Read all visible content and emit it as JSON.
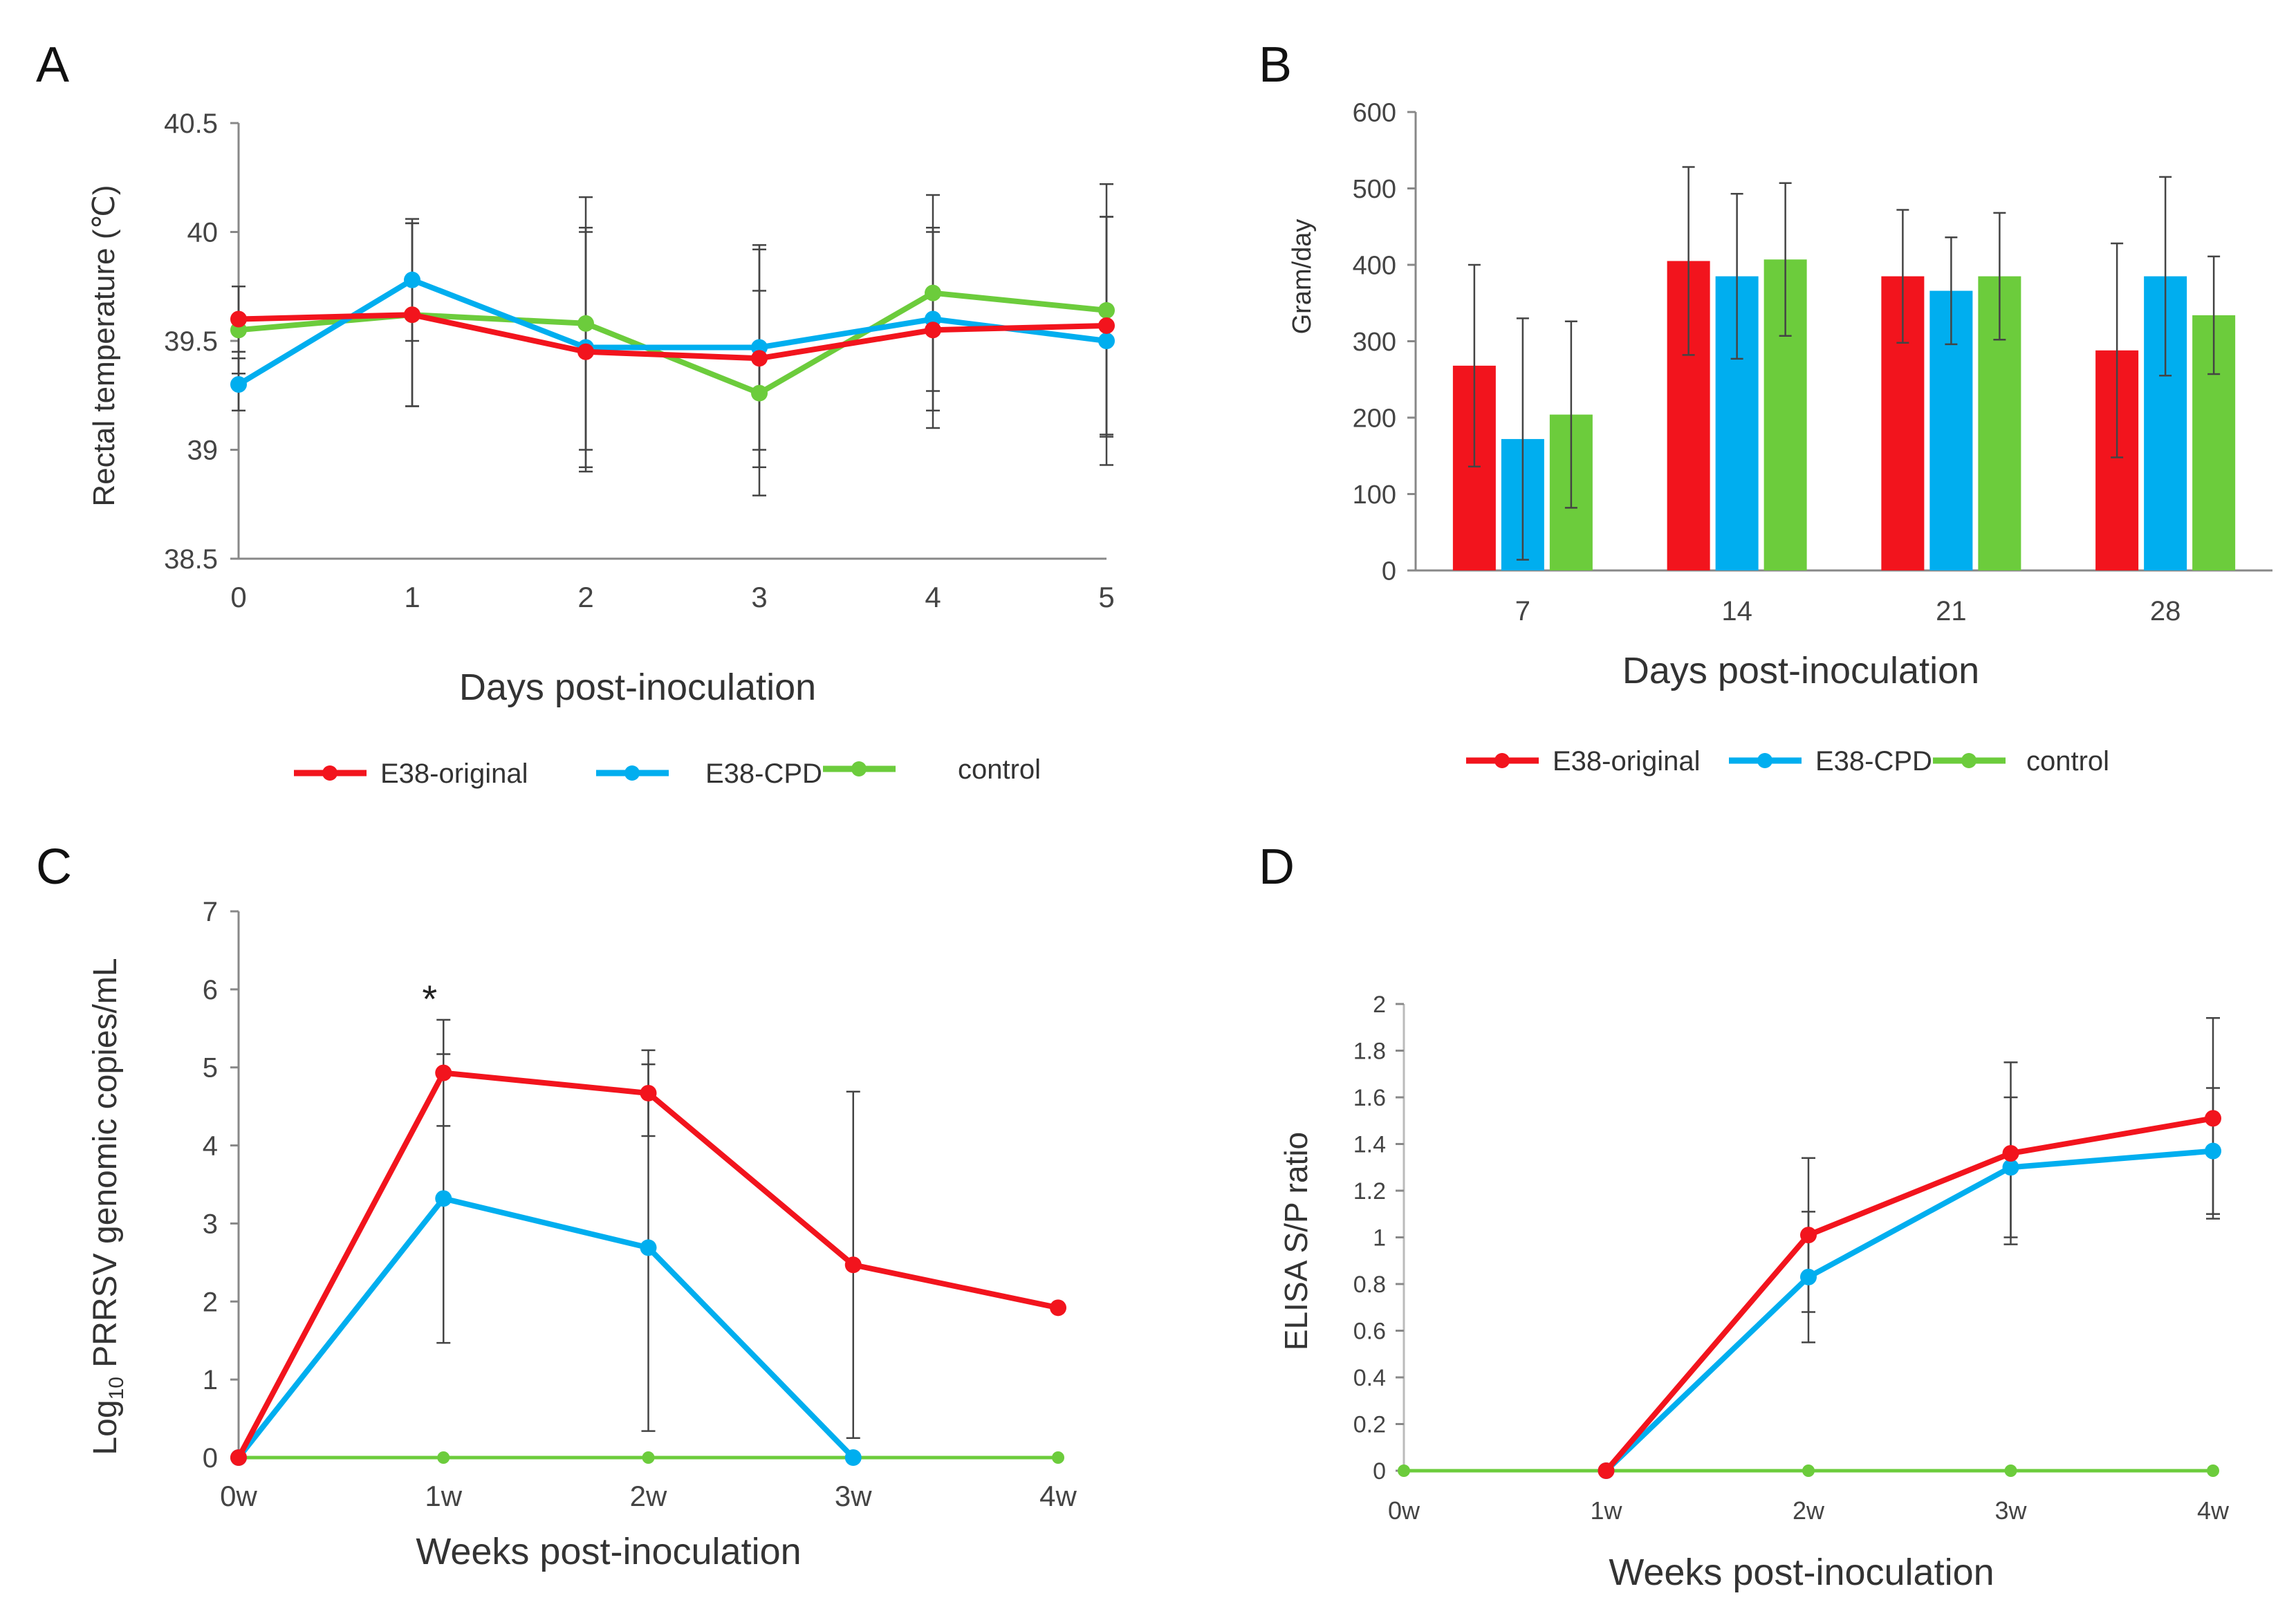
{
  "colors": {
    "red": "#f2141d",
    "blue": "#00aeef",
    "green": "#6ccc3c",
    "axis": "#888888",
    "error": "#444444"
  },
  "chart_data": [
    {
      "panel": "A",
      "type": "line",
      "xlabel": "Days post-inoculation",
      "ylabel": "Rectal temperature (℃)",
      "ylim": [
        38.5,
        40.5
      ],
      "yticks": [
        38.5,
        39,
        39.5,
        40,
        40.5
      ],
      "ytick_labels": [
        "38.5",
        "39",
        "39.5",
        "40",
        "40.5"
      ],
      "categories": [
        "0",
        "1",
        "2",
        "3",
        "4",
        "5"
      ],
      "series": [
        {
          "name": "E38-original",
          "color": "red",
          "values": [
            39.6,
            39.62,
            39.45,
            39.42,
            39.55,
            39.57
          ],
          "err": [
            0.15,
            0.42,
            0.55,
            0.5,
            0.45,
            0.5
          ]
        },
        {
          "name": "E38-CPD",
          "color": "blue",
          "values": [
            39.3,
            39.78,
            39.47,
            39.47,
            39.6,
            39.5
          ],
          "err": [
            0.12,
            0.28,
            0.55,
            0.47,
            0.42,
            0.57
          ]
        },
        {
          "name": "control",
          "color": "green",
          "values": [
            39.55,
            39.62,
            39.58,
            39.26,
            39.72,
            39.64
          ],
          "err": [
            0.2,
            0.42,
            0.58,
            0.47,
            0.45,
            0.58
          ]
        }
      ],
      "legend": [
        "E38-original",
        "E38-CPD",
        "control"
      ]
    },
    {
      "panel": "B",
      "type": "bar",
      "xlabel": "Days post-inoculation",
      "ylabel": "Gram/day",
      "ylim": [
        0,
        600
      ],
      "yticks": [
        0,
        100,
        200,
        300,
        400,
        500,
        600
      ],
      "ytick_labels": [
        "0",
        "100",
        "200",
        "300",
        "400",
        "500",
        "600"
      ],
      "categories": [
        "7",
        "14",
        "21",
        "28"
      ],
      "series": [
        {
          "name": "E38-original",
          "color": "red",
          "values": [
            268,
            405,
            385,
            288
          ],
          "err": [
            132,
            123,
            87,
            140
          ]
        },
        {
          "name": "E38-CPD",
          "color": "blue",
          "values": [
            172,
            385,
            366,
            385
          ],
          "err": [
            158,
            108,
            70,
            130
          ]
        },
        {
          "name": "control",
          "color": "green",
          "values": [
            204,
            407,
            385,
            334
          ],
          "err": [
            122,
            100,
            83,
            77
          ]
        }
      ],
      "legend": [
        "E38-original",
        "E38-CPD",
        "control"
      ]
    },
    {
      "panel": "C",
      "type": "line",
      "xlabel": "Weeks post-inoculation",
      "ylabel": "Log",
      "ylabel_sub": "10",
      "ylabel_rest": " PRRSV genomic copies/mL",
      "ylim": [
        0,
        7
      ],
      "yticks": [
        0,
        1,
        2,
        3,
        4,
        5,
        6,
        7
      ],
      "ytick_labels": [
        "0",
        "1",
        "2",
        "3",
        "4",
        "5",
        "6",
        "7"
      ],
      "categories": [
        "0w",
        "1w",
        "2w",
        "3w",
        "4w"
      ],
      "annotation": "*",
      "series": [
        {
          "name": "E38-original",
          "color": "red",
          "values": [
            0,
            4.93,
            4.67,
            2.47,
            1.92
          ],
          "err": [
            0,
            0.68,
            0.55,
            2.22,
            0
          ]
        },
        {
          "name": "E38-CPD",
          "color": "blue",
          "values": [
            0,
            3.32,
            2.69,
            0,
            null
          ],
          "err": [
            0,
            1.85,
            2.35,
            0,
            0
          ]
        },
        {
          "name": "control",
          "color": "green",
          "values": [
            0,
            0,
            0,
            0,
            0
          ],
          "err": [
            0,
            0,
            0,
            0,
            0
          ]
        }
      ]
    },
    {
      "panel": "D",
      "type": "line",
      "xlabel": "Weeks post-inoculation",
      "ylabel": "ELISA S/P ratio",
      "ylim": [
        0,
        2
      ],
      "yticks": [
        0,
        0.2,
        0.4,
        0.6,
        0.8,
        1,
        1.2,
        1.4,
        1.6,
        1.8,
        2
      ],
      "ytick_labels": [
        "0",
        "0.2",
        "0.4",
        "0.6",
        "0.8",
        "1",
        "1.2",
        "1.4",
        "1.6",
        "1.8",
        "2"
      ],
      "categories": [
        "0w",
        "1w",
        "2w",
        "3w",
        "4w"
      ],
      "series": [
        {
          "name": "E38-original",
          "color": "red",
          "values": [
            null,
            0,
            1.01,
            1.36,
            1.51
          ],
          "err": [
            0,
            0,
            0.33,
            0.39,
            0.43
          ]
        },
        {
          "name": "E38-CPD",
          "color": "blue",
          "values": [
            null,
            0,
            0.83,
            1.3,
            1.37
          ],
          "err": [
            0,
            0,
            0.28,
            0.3,
            0.27
          ]
        },
        {
          "name": "control",
          "color": "green",
          "values": [
            0,
            0,
            0,
            0,
            0
          ],
          "err": [
            0,
            0,
            0,
            0,
            0
          ]
        }
      ]
    }
  ]
}
